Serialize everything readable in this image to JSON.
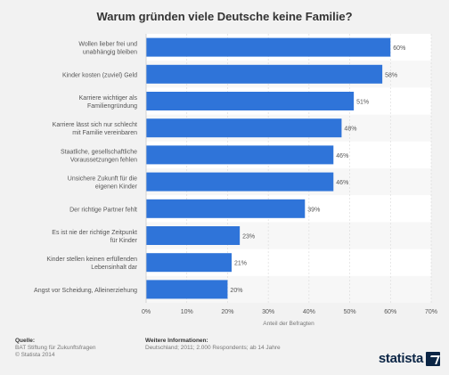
{
  "chart_data": {
    "type": "bar",
    "orientation": "horizontal",
    "title": "Warum gründen viele Deutsche keine Familie?",
    "xlabel": "Anteil der Befragten",
    "categories": [
      [
        "Wollen lieber frei und",
        "unabhängig bleiben"
      ],
      [
        "Kinder kosten (zuviel) Geld"
      ],
      [
        "Karriere wichtiger als",
        "Familiengründung"
      ],
      [
        "Karriere lässt sich nur schlecht",
        "mit Familie vereinbaren"
      ],
      [
        "Staatliche, gesellschaftliche",
        "Voraussetzungen fehlen"
      ],
      [
        "Unsichere Zukunft für die",
        "eigenen Kinder"
      ],
      [
        "Der richtige Partner fehlt"
      ],
      [
        "Es ist nie der richtige Zeitpunkt",
        "für Kinder"
      ],
      [
        "Kinder stellen keinen erfüllenden",
        "Lebensinhalt dar"
      ],
      [
        "Angst vor Scheidung, Alleinerziehung"
      ]
    ],
    "values": [
      60,
      58,
      51,
      48,
      46,
      46,
      39,
      23,
      21,
      20
    ],
    "value_labels": [
      "60%",
      "58%",
      "51%",
      "48%",
      "46%",
      "46%",
      "39%",
      "23%",
      "21%",
      "20%"
    ],
    "xlim": [
      0,
      70
    ],
    "ticks": [
      0,
      10,
      20,
      30,
      40,
      50,
      60,
      70
    ],
    "tick_labels": [
      "0%",
      "10%",
      "20%",
      "30%",
      "40%",
      "50%",
      "60%",
      "70%"
    ],
    "grid": true,
    "bar_color": "#2f74d9"
  },
  "footer": {
    "source_heading": "Quelle:",
    "source_lines": [
      "BAT Stiftung für Zukunftsfragen",
      "© Statista 2014"
    ],
    "info_heading": "Weitere Informationen:",
    "info_line": "Deutschland; 2011; 2.000 Respondents; ab 14 Jahre"
  },
  "brand": {
    "logo_text": "statista",
    "logo_icon": "statista-arrow-icon"
  }
}
